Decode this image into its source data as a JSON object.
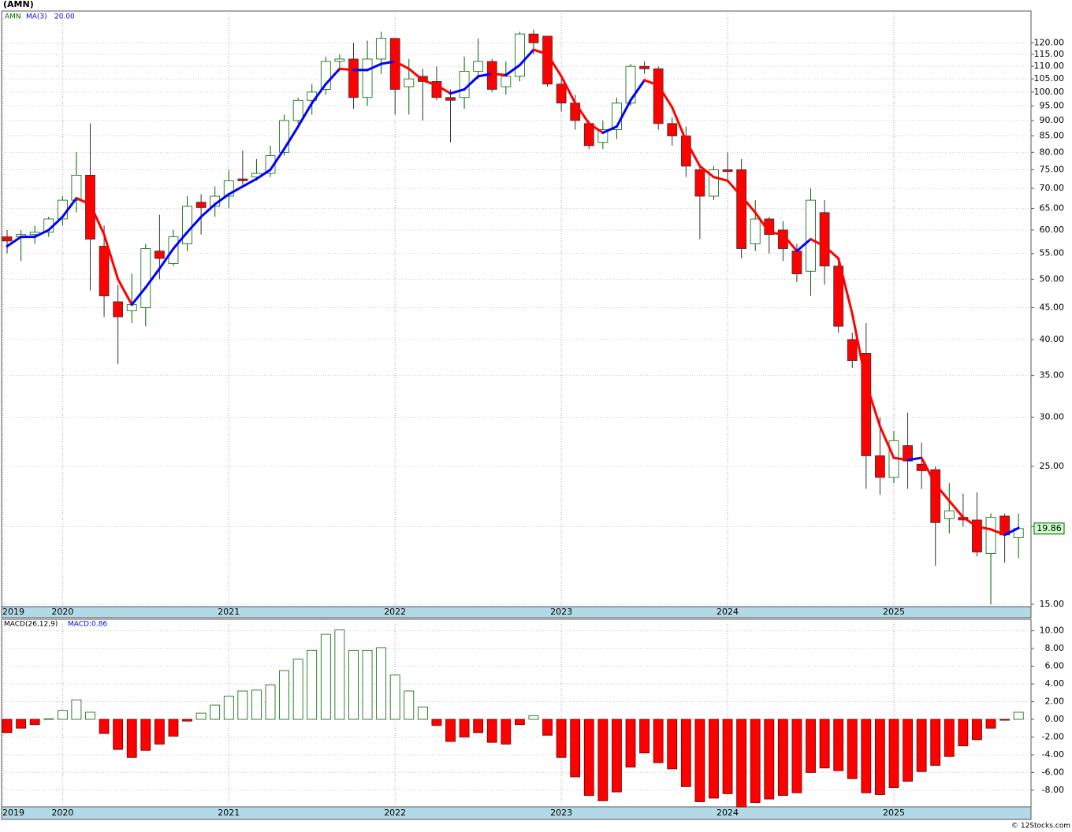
{
  "chart_data": [
    {
      "type": "candlestick",
      "title": "(AMN)",
      "yscale": "log",
      "grid": true,
      "xlim": [
        -0.4,
        73.9
      ],
      "ylim": [
        15,
        135
      ],
      "xticks": [
        {
          "value": -0.3,
          "label": "2019"
        },
        {
          "value": 4,
          "label": "2020"
        },
        {
          "value": 16,
          "label": "2021"
        },
        {
          "value": 28,
          "label": "2022"
        },
        {
          "value": 40,
          "label": "2023"
        },
        {
          "value": 52,
          "label": "2024"
        },
        {
          "value": 64,
          "label": "2025"
        }
      ],
      "yticks": [
        {
          "value": 15,
          "label": "15.00"
        },
        {
          "value": 20,
          "label": "20.00"
        },
        {
          "value": 25,
          "label": "25.00"
        },
        {
          "value": 30,
          "label": "30.00"
        },
        {
          "value": 35,
          "label": "35.00"
        },
        {
          "value": 40,
          "label": "40.00"
        },
        {
          "value": 45,
          "label": "45.00"
        },
        {
          "value": 50,
          "label": "50.00"
        },
        {
          "value": 55,
          "label": "55.00"
        },
        {
          "value": 60,
          "label": "60.00"
        },
        {
          "value": 65,
          "label": "65.00"
        },
        {
          "value": 70,
          "label": "70.00"
        },
        {
          "value": 75,
          "label": "75.00"
        },
        {
          "value": 80,
          "label": "80.00"
        },
        {
          "value": 85,
          "label": "85.00"
        },
        {
          "value": 90,
          "label": "90.00"
        },
        {
          "value": 95,
          "label": "95.00"
        },
        {
          "value": 100,
          "label": "100.00"
        },
        {
          "value": 105,
          "label": "105.00"
        },
        {
          "value": 110,
          "label": "110.00"
        },
        {
          "value": 115,
          "label": "115.00"
        },
        {
          "value": 120,
          "label": "120.00"
        }
      ],
      "last_price": 19.86,
      "series": [
        {
          "name": "AMN",
          "color": "#006400",
          "down_color": "#ff0000",
          "open": [
            58.5,
            58.5,
            59,
            59.5,
            62.5,
            67,
            73.5,
            56.5,
            46,
            44.5,
            45,
            55.5,
            53,
            57,
            66.5,
            65.5,
            68,
            72.5,
            73,
            74,
            80,
            90,
            97,
            101,
            112,
            113,
            98,
            113,
            122,
            102,
            106,
            104,
            98,
            98,
            108,
            112,
            102,
            106,
            124,
            123,
            103,
            96,
            89,
            83,
            87,
            96,
            110,
            109,
            89,
            85,
            75,
            68,
            75,
            75,
            57,
            62.5,
            60,
            55.5,
            51.5,
            64,
            52.5,
            40,
            38,
            26,
            24,
            27,
            25.2,
            24.7,
            20.6,
            20.7,
            20.5,
            18.1,
            20.8,
            19.2
          ],
          "high": [
            60,
            60,
            61,
            63,
            68,
            80,
            89,
            61,
            49,
            51,
            57,
            63.5,
            60,
            68,
            68.5,
            70.5,
            75,
            80.5,
            78,
            82,
            92,
            98,
            103,
            114,
            115,
            120,
            121,
            125,
            122,
            113,
            109,
            110,
            101,
            114,
            122,
            113,
            112,
            125,
            126,
            123,
            105,
            99,
            90,
            90,
            98,
            111,
            112,
            110,
            91,
            88,
            76,
            76,
            80,
            78,
            67,
            63,
            62,
            57,
            70,
            67,
            54,
            41,
            42.5,
            30,
            28.5,
            30.5,
            27.3,
            25,
            23.5,
            22.6,
            22.7,
            21,
            21,
            21
          ],
          "low": [
            55,
            53.5,
            57,
            58.5,
            61,
            64,
            48,
            43.5,
            36.5,
            42.5,
            42,
            50,
            52.5,
            55.5,
            59,
            63,
            65,
            71,
            72,
            73,
            79,
            89,
            92,
            99,
            108,
            94,
            95,
            107,
            92,
            92,
            90,
            97,
            83,
            94,
            105,
            100,
            99,
            104,
            115,
            102,
            93,
            87,
            81,
            81,
            84,
            95,
            107,
            87,
            82,
            73,
            58,
            67,
            72,
            54,
            55.5,
            55,
            53.5,
            49.5,
            47,
            49,
            41,
            36,
            23,
            22.5,
            23.5,
            23,
            23,
            17.3,
            19.5,
            20,
            17.9,
            15,
            17.5,
            17.8
          ],
          "close": [
            57.6,
            59,
            59.5,
            62.5,
            67,
            73.5,
            58,
            47,
            43.5,
            45.5,
            56,
            54,
            58.5,
            65.5,
            65.2,
            68,
            72,
            72,
            74,
            79,
            90,
            97,
            100,
            112,
            113,
            98,
            113,
            122,
            101,
            105,
            104,
            98,
            97,
            108,
            112,
            101,
            106,
            124,
            120,
            103,
            96,
            90,
            82,
            87,
            96,
            110,
            109,
            89,
            85,
            76,
            68,
            75,
            74.5,
            56,
            62.5,
            59,
            56,
            51,
            67,
            52.5,
            42,
            37,
            26,
            24,
            27.5,
            25.5,
            24.6,
            20.3,
            21.2,
            20.5,
            18.2,
            20.7,
            19.4,
            19.86
          ]
        },
        {
          "name": "MA(3)",
          "color": "#0000ff",
          "down_color": "#ff0000",
          "current_label": "20.00",
          "values": [
            56.5,
            58.5,
            58.5,
            60,
            63,
            67.5,
            66,
            59,
            50,
            45.5,
            48.5,
            52,
            56,
            59.5,
            63,
            66,
            68.5,
            70.5,
            72.5,
            75,
            81,
            88,
            96,
            103,
            109,
            108.5,
            108.5,
            111,
            112,
            109,
            104.5,
            102.5,
            99.5,
            101,
            106,
            107,
            106.5,
            110.5,
            117,
            115,
            106,
            96,
            89,
            86,
            88,
            97,
            104.5,
            102.5,
            94.5,
            83.5,
            76,
            73,
            72,
            68,
            64,
            59.5,
            59,
            55.5,
            58,
            56.5,
            54,
            44,
            34,
            29,
            25.8,
            25.6,
            25.8,
            23.4,
            22,
            20.7,
            20,
            19.8,
            19.4,
            19.9
          ]
        }
      ]
    },
    {
      "type": "bar",
      "title": "MACD(26,12,9)",
      "value_text": "MACD:0.86",
      "color": "#006400",
      "down_color": "#ff0000",
      "grid": true,
      "xlim": [
        -0.4,
        73.9
      ],
      "ylim": [
        -9.7,
        11.3
      ],
      "xticks": [
        {
          "value": -0.3,
          "label": "2019"
        },
        {
          "value": 4,
          "label": "2020"
        },
        {
          "value": 16,
          "label": "2021"
        },
        {
          "value": 28,
          "label": "2022"
        },
        {
          "value": 40,
          "label": "2023"
        },
        {
          "value": 52,
          "label": "2024"
        },
        {
          "value": 64,
          "label": "2025"
        }
      ],
      "yticks": [
        {
          "value": 10,
          "label": "10.00"
        },
        {
          "value": 8,
          "label": "8.00"
        },
        {
          "value": 6,
          "label": "6.00"
        },
        {
          "value": 4,
          "label": "4.00"
        },
        {
          "value": 2,
          "label": "2.00"
        },
        {
          "value": 0,
          "label": "0.00"
        },
        {
          "value": -2,
          "label": "-2.00"
        },
        {
          "value": -4,
          "label": "-4.00"
        },
        {
          "value": -6,
          "label": "-6.00"
        },
        {
          "value": -8,
          "label": "-8.00"
        }
      ],
      "values": [
        -1.5,
        -1.0,
        -0.6,
        0.05,
        1.0,
        2.2,
        0.8,
        -1.6,
        -3.4,
        -4.3,
        -3.5,
        -2.8,
        -1.9,
        -0.2,
        0.7,
        1.6,
        2.6,
        3.2,
        3.3,
        3.9,
        5.5,
        6.8,
        7.8,
        9.6,
        10.1,
        7.8,
        7.8,
        8.1,
        5.0,
        3.2,
        1.4,
        -0.7,
        -2.5,
        -2.0,
        -1.5,
        -2.6,
        -2.8,
        -0.6,
        0.4,
        -1.8,
        -4.3,
        -6.5,
        -8.6,
        -9.2,
        -8.2,
        -5.4,
        -3.8,
        -4.9,
        -5.6,
        -7.6,
        -9.3,
        -8.9,
        -8.4,
        -9.9,
        -9.4,
        -9.0,
        -8.6,
        -8.3,
        -6.0,
        -5.5,
        -5.8,
        -6.7,
        -8.3,
        -8.5,
        -7.7,
        -7.0,
        -5.9,
        -5.2,
        -4.2,
        -3.0,
        -2.3,
        -1.0,
        -0.1,
        0.8
      ]
    }
  ],
  "footer": "© 12Stocks.com"
}
